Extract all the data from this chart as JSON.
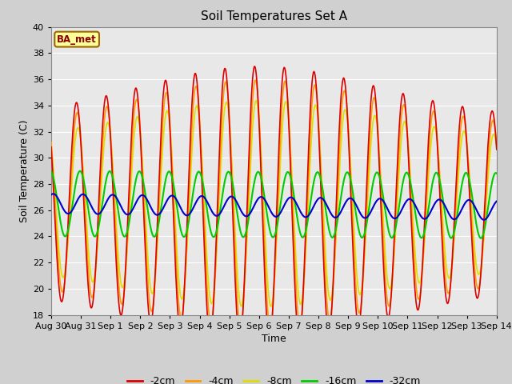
{
  "title": "Soil Temperatures Set A",
  "xlabel": "Time",
  "ylabel": "Soil Temperature (C)",
  "ylim": [
    18,
    40
  ],
  "yticks": [
    18,
    20,
    22,
    24,
    26,
    28,
    30,
    32,
    34,
    36,
    38,
    40
  ],
  "xtick_labels": [
    "Aug 30",
    "Aug 31",
    "Sep 1",
    "Sep 2",
    "Sep 3",
    "Sep 4",
    "Sep 5",
    "Sep 6",
    "Sep 7",
    "Sep 8",
    "Sep 9",
    "Sep 10",
    "Sep 11",
    "Sep 12",
    "Sep 13",
    "Sep 14"
  ],
  "series": {
    "-2cm": {
      "color": "#dd0000",
      "linewidth": 1.2
    },
    "-4cm": {
      "color": "#ff9900",
      "linewidth": 1.2
    },
    "-8cm": {
      "color": "#dddd00",
      "linewidth": 1.2
    },
    "-16cm": {
      "color": "#00cc00",
      "linewidth": 1.5
    },
    "-32cm": {
      "color": "#0000cc",
      "linewidth": 1.5
    }
  },
  "legend_label": "BA_met",
  "bg_color": "#e8e8e8",
  "grid_color": "#ffffff",
  "title_fontsize": 11,
  "axis_fontsize": 9,
  "tick_fontsize": 8
}
